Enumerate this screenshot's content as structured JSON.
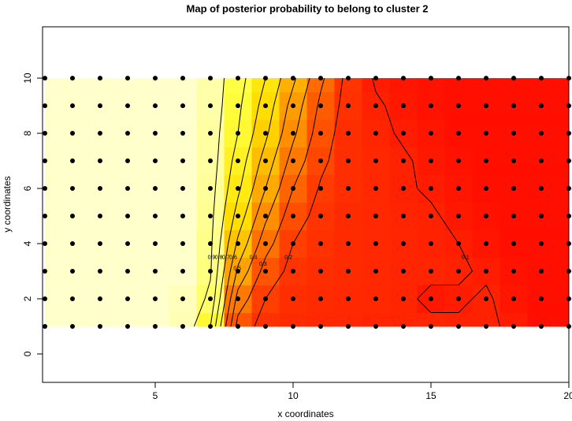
{
  "chart_data": {
    "type": "contour",
    "title": "Map of posterior probability to belong to cluster  2",
    "x_label": "x coordinates",
    "y_label": "y coordinates",
    "xlim": [
      0.914,
      20
    ],
    "ylim": [
      -1.03,
      11.86
    ],
    "xticks": [
      5,
      10,
      15,
      20
    ],
    "yticks": [
      0,
      2,
      4,
      6,
      8,
      10
    ],
    "grid_x": [
      1,
      2,
      3,
      4,
      5,
      6,
      7,
      8,
      9,
      10,
      11,
      12,
      13,
      14,
      15,
      16,
      17,
      18,
      19,
      20
    ],
    "grid_y": [
      1,
      2,
      3,
      4,
      5,
      6,
      7,
      8,
      9,
      10
    ],
    "zlim": [
      0,
      1
    ],
    "colors": [
      "#ff0000",
      "#ff3300",
      "#ff7000",
      "#ffaa00",
      "#ffe000",
      "#ffff40",
      "#ffffcc"
    ],
    "contour_levels": [
      0.1,
      0.2,
      0.3,
      0.4,
      0.5,
      0.6,
      0.7,
      0.8,
      0.9
    ],
    "point_color": "#000000",
    "z": [
      [
        1,
        1,
        1,
        1,
        1,
        0.97,
        0.8,
        0.26,
        0.16,
        0.14,
        0.13,
        0.13,
        0.12,
        0.12,
        0.12,
        0.11,
        0.11,
        0.09,
        0.05,
        0.05
      ],
      [
        1,
        1,
        1,
        1,
        1,
        0.98,
        0.88,
        0.36,
        0.2,
        0.15,
        0.14,
        0.13,
        0.13,
        0.12,
        0.08,
        0.09,
        0.11,
        0.07,
        0.05,
        0.05
      ],
      [
        1,
        1,
        1,
        1,
        1,
        1,
        0.91,
        0.48,
        0.26,
        0.17,
        0.15,
        0.14,
        0.13,
        0.12,
        0.12,
        0.11,
        0.09,
        0.06,
        0.05,
        0.05
      ],
      [
        1,
        1,
        1,
        1,
        1,
        1,
        0.92,
        0.58,
        0.34,
        0.2,
        0.16,
        0.14,
        0.13,
        0.12,
        0.11,
        0.1,
        0.07,
        0.05,
        0.05,
        0.05
      ],
      [
        1,
        1,
        1,
        1,
        1,
        1,
        0.93,
        0.66,
        0.42,
        0.24,
        0.17,
        0.14,
        0.13,
        0.12,
        0.11,
        0.08,
        0.06,
        0.05,
        0.05,
        0.05
      ],
      [
        1,
        1,
        1,
        1,
        1,
        1,
        0.94,
        0.72,
        0.5,
        0.3,
        0.19,
        0.15,
        0.13,
        0.11,
        0.09,
        0.07,
        0.05,
        0.05,
        0.05,
        0.05
      ],
      [
        1,
        1,
        1,
        1,
        1,
        1,
        0.95,
        0.76,
        0.56,
        0.36,
        0.22,
        0.15,
        0.13,
        0.11,
        0.08,
        0.06,
        0.05,
        0.05,
        0.05,
        0.05
      ],
      [
        1,
        1,
        1,
        1,
        1,
        1,
        0.95,
        0.8,
        0.62,
        0.42,
        0.25,
        0.15,
        0.12,
        0.09,
        0.07,
        0.05,
        0.05,
        0.05,
        0.05,
        0.05
      ],
      [
        1,
        1,
        1,
        1,
        1,
        1,
        0.96,
        0.82,
        0.66,
        0.46,
        0.28,
        0.16,
        0.11,
        0.08,
        0.06,
        0.05,
        0.05,
        0.05,
        0.05,
        0.05
      ],
      [
        1,
        1,
        1,
        1,
        1,
        1,
        0.96,
        0.84,
        0.7,
        0.52,
        0.32,
        0.17,
        0.09,
        0.07,
        0.06,
        0.05,
        0.05,
        0.05,
        0.05,
        0.05
      ]
    ]
  }
}
